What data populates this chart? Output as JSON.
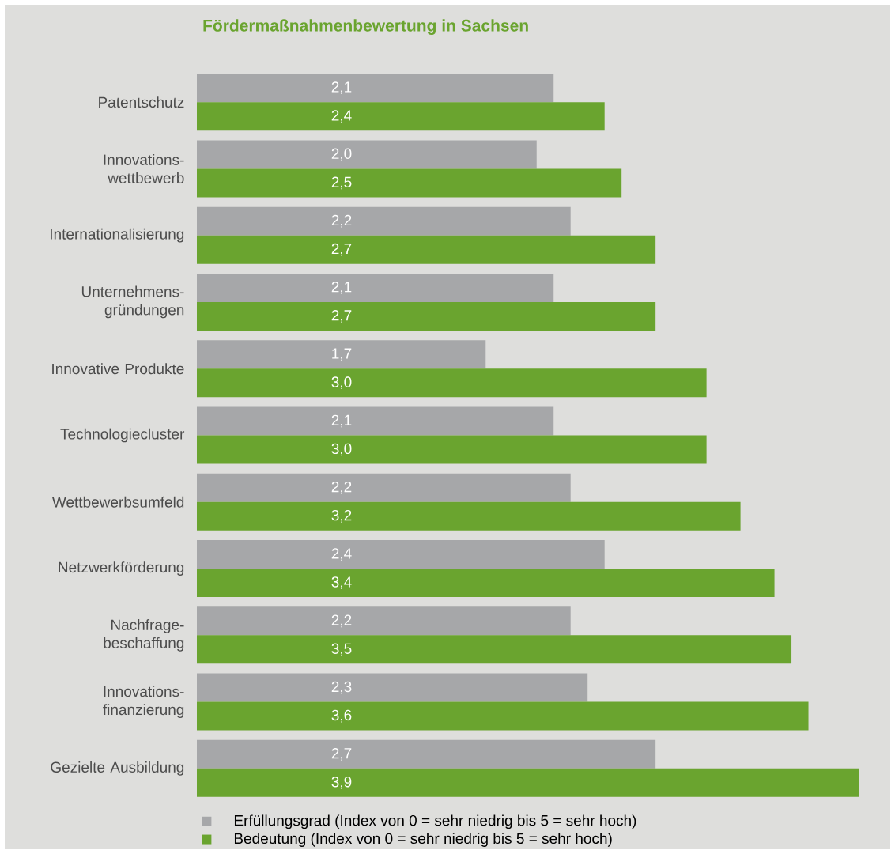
{
  "chart_data": {
    "type": "bar",
    "orientation": "horizontal",
    "title": "Fördermaßnahmenbewertung  in Sachsen",
    "categories": [
      "Patentschutz",
      "Innovations-wettbewerb",
      "Internationalisierung",
      "Unternehmens-gründungen",
      "Innovative Produkte",
      "Technologiecluster",
      "Wettbewerbsumfeld",
      "Netzwerkförderung",
      "Nachfrage-beschaffung",
      "Innovations-finanzierung",
      "Gezielte Ausbildung"
    ],
    "series": [
      {
        "name": "Erfüllungsgrad (Index von 0 = sehr niedrig bis 5 = sehr hoch)",
        "color": "#a6a7a9",
        "values": [
          2.1,
          2.0,
          2.2,
          2.1,
          1.7,
          2.1,
          2.2,
          2.4,
          2.2,
          2.3,
          2.7
        ],
        "value_labels": [
          "2,1",
          "2,0",
          "2,2",
          "2,1",
          "1,7",
          "2,1",
          "2,2",
          "2,4",
          "2,2",
          "2,3",
          "2,7"
        ]
      },
      {
        "name": "Bedeutung (Index von 0 = sehr niedrig bis 5 = sehr hoch)",
        "color": "#6aa42f",
        "values": [
          2.4,
          2.5,
          2.7,
          2.7,
          3.0,
          3.0,
          3.2,
          3.4,
          3.5,
          3.6,
          3.9
        ],
        "value_labels": [
          "2,4",
          "2,5",
          "2,7",
          "2,7",
          "3,0",
          "3,0",
          "3,2",
          "3,4",
          "3,5",
          "3,6",
          "3,9"
        ]
      }
    ],
    "legend": "bottom"
  }
}
